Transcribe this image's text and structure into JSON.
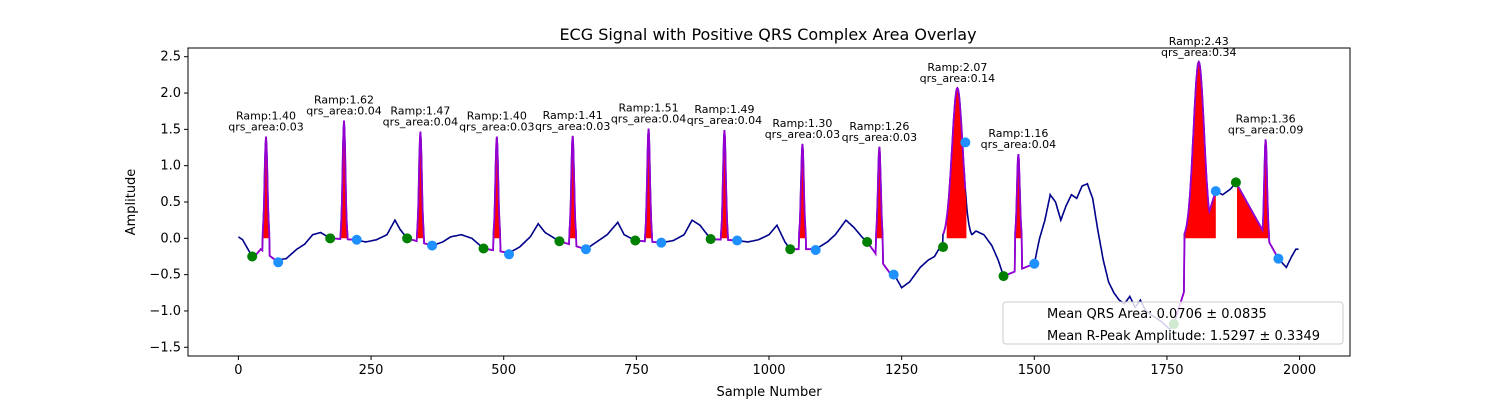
{
  "chart_data": {
    "type": "line",
    "title": "ECG Signal with Positive QRS Complex Area Overlay",
    "xlabel": "Sample Number",
    "ylabel": "Amplitude",
    "xlim": [
      -95,
      2095
    ],
    "ylim": [
      -1.62,
      2.62
    ],
    "xticks": [
      0,
      250,
      500,
      750,
      1000,
      1250,
      1500,
      1750,
      2000
    ],
    "yticks": [
      -1.5,
      -1.0,
      -0.5,
      0.0,
      0.5,
      1.0,
      1.5,
      2.0,
      2.5
    ],
    "grid": false,
    "colors": {
      "signal": "#00008b",
      "qrs_segment": "#9400d3",
      "area_fill": "#ff0000",
      "onset_marker": "#008000",
      "offset_marker": "#1e90ff"
    },
    "baseline_points": [
      [
        0,
        0.02
      ],
      [
        8,
        -0.02
      ],
      [
        18,
        -0.15
      ],
      [
        26,
        -0.25
      ],
      [
        34,
        -0.22
      ],
      [
        42,
        -0.15
      ],
      [
        70,
        -0.3
      ],
      [
        90,
        -0.28
      ],
      [
        110,
        -0.15
      ],
      [
        125,
        -0.08
      ],
      [
        140,
        0.05
      ],
      [
        155,
        0.08
      ],
      [
        173,
        0.0
      ],
      [
        220,
        -0.02
      ],
      [
        240,
        -0.05
      ],
      [
        260,
        -0.02
      ],
      [
        280,
        0.05
      ],
      [
        295,
        0.25
      ],
      [
        305,
        0.12
      ],
      [
        318,
        0.0
      ],
      [
        365,
        -0.1
      ],
      [
        385,
        -0.05
      ],
      [
        400,
        0.02
      ],
      [
        420,
        0.05
      ],
      [
        440,
        0.0
      ],
      [
        462,
        -0.14
      ],
      [
        510,
        -0.2
      ],
      [
        530,
        -0.12
      ],
      [
        550,
        0.02
      ],
      [
        565,
        0.2
      ],
      [
        578,
        0.08
      ],
      [
        605,
        -0.04
      ],
      [
        655,
        -0.15
      ],
      [
        675,
        -0.05
      ],
      [
        695,
        0.05
      ],
      [
        715,
        0.22
      ],
      [
        727,
        0.05
      ],
      [
        748,
        -0.03
      ],
      [
        797,
        -0.06
      ],
      [
        820,
        -0.03
      ],
      [
        840,
        0.05
      ],
      [
        855,
        0.25
      ],
      [
        870,
        0.18
      ],
      [
        890,
        -0.01
      ],
      [
        940,
        -0.03
      ],
      [
        960,
        -0.05
      ],
      [
        980,
        -0.02
      ],
      [
        1000,
        0.05
      ],
      [
        1015,
        0.18
      ],
      [
        1030,
        -0.05
      ],
      [
        1040,
        -0.15
      ],
      [
        1088,
        -0.15
      ],
      [
        1110,
        -0.05
      ],
      [
        1125,
        0.05
      ],
      [
        1145,
        0.25
      ],
      [
        1160,
        0.15
      ],
      [
        1175,
        0.02
      ],
      [
        1185,
        -0.05
      ],
      [
        1230,
        -0.5
      ],
      [
        1240,
        -0.55
      ],
      [
        1250,
        -0.68
      ],
      [
        1265,
        -0.6
      ],
      [
        1285,
        -0.4
      ],
      [
        1300,
        -0.3
      ],
      [
        1312,
        -0.25
      ],
      [
        1320,
        -0.15
      ],
      [
        1328,
        -0.12
      ],
      [
        1375,
        0.0
      ],
      [
        1390,
        0.1
      ],
      [
        1405,
        0.05
      ],
      [
        1420,
        -0.1
      ],
      [
        1432,
        -0.3
      ],
      [
        1442,
        -0.52
      ],
      [
        1500,
        -0.35
      ],
      [
        1510,
        0.0
      ],
      [
        1520,
        0.25
      ],
      [
        1530,
        0.6
      ],
      [
        1540,
        0.5
      ],
      [
        1550,
        0.25
      ],
      [
        1560,
        0.45
      ],
      [
        1570,
        0.6
      ],
      [
        1580,
        0.55
      ],
      [
        1590,
        0.72
      ],
      [
        1600,
        0.75
      ],
      [
        1610,
        0.55
      ],
      [
        1620,
        0.1
      ],
      [
        1630,
        -0.3
      ],
      [
        1640,
        -0.6
      ],
      [
        1650,
        -0.75
      ],
      [
        1660,
        -0.85
      ],
      [
        1670,
        -0.9
      ],
      [
        1680,
        -0.8
      ],
      [
        1690,
        -0.95
      ],
      [
        1700,
        -0.85
      ],
      [
        1710,
        -1.0
      ],
      [
        1720,
        -1.05
      ],
      [
        1730,
        -1.1
      ],
      [
        1740,
        -1.15
      ],
      [
        1755,
        -1.25
      ],
      [
        1763,
        -1.18
      ],
      [
        1842,
        0.65
      ],
      [
        1855,
        0.6
      ],
      [
        1870,
        0.68
      ],
      [
        1880,
        0.77
      ],
      [
        1960,
        -0.28
      ],
      [
        1975,
        -0.4
      ],
      [
        1985,
        -0.25
      ],
      [
        1993,
        -0.15
      ],
      [
        1998,
        -0.15
      ]
    ],
    "beats": [
      {
        "onset": 26,
        "peak": 52,
        "offset": 75,
        "onset_y": -0.25,
        "r_y": 1.4,
        "offset_y": -0.33,
        "ramp": "1.40",
        "area": "0.03",
        "area_start": 42,
        "area_end": 58
      },
      {
        "onset": 173,
        "peak": 199,
        "offset": 223,
        "onset_y": 0.0,
        "r_y": 1.62,
        "offset_y": -0.02,
        "ramp": "1.62",
        "area": "0.04",
        "area_start": 188,
        "area_end": 206
      },
      {
        "onset": 318,
        "peak": 343,
        "offset": 365,
        "onset_y": 0.0,
        "r_y": 1.47,
        "offset_y": -0.1,
        "ramp": "1.47",
        "area": "0.04",
        "area_start": 333,
        "area_end": 350
      },
      {
        "onset": 462,
        "peak": 487,
        "offset": 510,
        "onset_y": -0.14,
        "r_y": 1.4,
        "offset_y": -0.22,
        "ramp": "1.40",
        "area": "0.03",
        "area_start": 477,
        "area_end": 494
      },
      {
        "onset": 605,
        "peak": 630,
        "offset": 655,
        "onset_y": -0.04,
        "r_y": 1.41,
        "offset_y": -0.15,
        "ramp": "1.41",
        "area": "0.03",
        "area_start": 620,
        "area_end": 637
      },
      {
        "onset": 748,
        "peak": 773,
        "offset": 797,
        "onset_y": -0.03,
        "r_y": 1.51,
        "offset_y": -0.06,
        "ramp": "1.51",
        "area": "0.04",
        "area_start": 763,
        "area_end": 780
      },
      {
        "onset": 890,
        "peak": 916,
        "offset": 940,
        "onset_y": -0.01,
        "r_y": 1.49,
        "offset_y": -0.03,
        "ramp": "1.49",
        "area": "0.04",
        "area_start": 905,
        "area_end": 923
      },
      {
        "onset": 1040,
        "peak": 1063,
        "offset": 1088,
        "onset_y": -0.15,
        "r_y": 1.3,
        "offset_y": -0.16,
        "ramp": "1.30",
        "area": "0.03",
        "area_start": 1053,
        "area_end": 1070
      },
      {
        "onset": 1185,
        "peak": 1208,
        "offset": 1235,
        "onset_y": -0.05,
        "r_y": 1.26,
        "offset_y": -0.5,
        "ramp": "1.26",
        "area": "0.03",
        "area_start": 1198,
        "area_end": 1215
      },
      {
        "onset": 1328,
        "peak": 1355,
        "offset": 1370,
        "onset_y": -0.12,
        "r_y": 2.07,
        "offset_y": 1.32,
        "ramp": "2.07",
        "area": "0.14",
        "area_start": 1335,
        "area_end": 1372
      },
      {
        "onset": 1442,
        "peak": 1470,
        "offset": 1500,
        "onset_y": -0.52,
        "r_y": 1.16,
        "offset_y": -0.35,
        "ramp": "1.16",
        "area": "0.04",
        "area_start": 1455,
        "area_end": 1478
      },
      {
        "onset": 1763,
        "peak": 1810,
        "offset": 1842,
        "onset_y": -1.18,
        "r_y": 2.43,
        "offset_y": 0.65,
        "ramp": "2.43",
        "area": "0.34",
        "area_start": 1780,
        "area_end": 1842
      },
      {
        "onset": 1880,
        "peak": 1936,
        "offset": 1960,
        "onset_y": 0.77,
        "r_y": 1.36,
        "offset_y": -0.28,
        "ramp": "1.36",
        "area": "0.09",
        "area_start": 1882,
        "area_end": 1948
      }
    ],
    "legend": {
      "placement": "lower-right",
      "entries": [
        "Mean QRS Area: 0.0706 ± 0.0835",
        "Mean R-Peak Amplitude: 1.5297 ± 0.3349"
      ]
    }
  }
}
